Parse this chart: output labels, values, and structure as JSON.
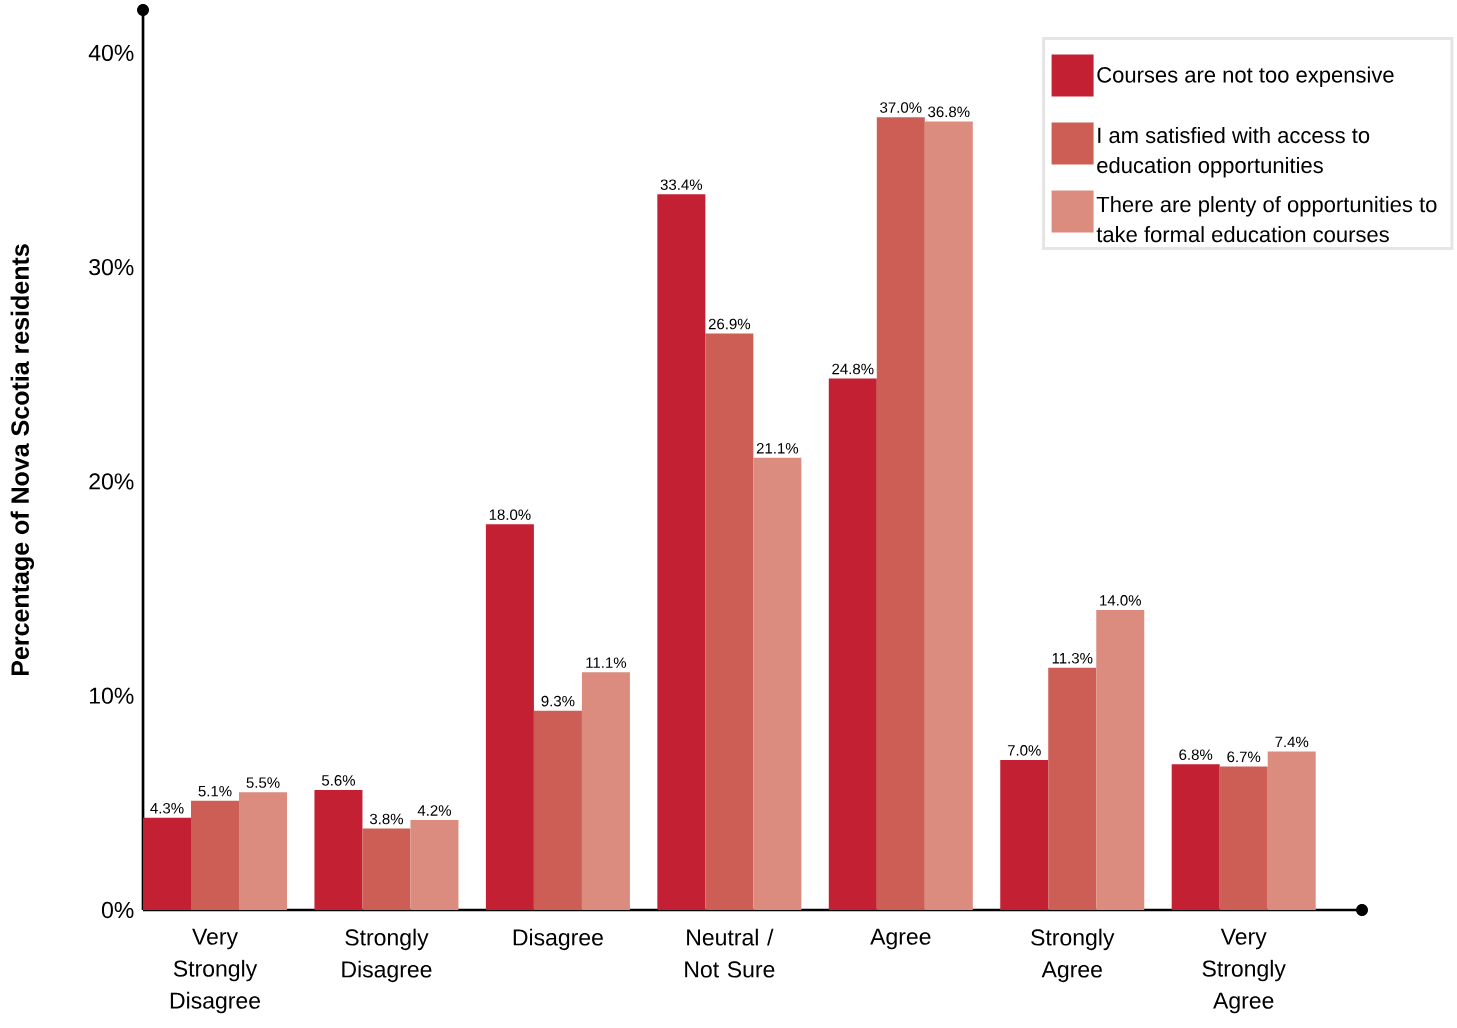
{
  "chart_data": {
    "type": "bar",
    "ylabel": "Percentage of Nova Scotia residents",
    "categories": [
      "Very Strongly Disagree",
      "Strongly Disagree",
      "Disagree",
      "Neutral / Not Sure",
      "Agree",
      "Strongly Agree",
      "Very Strongly Agree"
    ],
    "series": [
      {
        "name": "Courses are not too expensive",
        "color": "#c32033",
        "values": [
          4.3,
          5.6,
          18.0,
          33.4,
          24.8,
          7.0,
          6.8
        ],
        "value_labels": [
          "4.3%",
          "5.6%",
          "18.0%",
          "33.4%",
          "24.8%",
          "7.0%",
          "6.8%"
        ]
      },
      {
        "name": "I am satisfied with access to education opportunities",
        "color": "#cd5e55",
        "values": [
          5.1,
          3.8,
          9.3,
          26.9,
          37.0,
          11.3,
          6.7
        ],
        "value_labels": [
          "5.1%",
          "3.8%",
          "9.3%",
          "26.9%",
          "37.0%",
          "11.3%",
          "6.7%"
        ]
      },
      {
        "name": "There are plenty of opportunities to take formal education courses",
        "color": "#db8c7e",
        "values": [
          5.5,
          4.2,
          11.1,
          21.1,
          36.8,
          14.0,
          7.4
        ],
        "value_labels": [
          "5.5%",
          "4.2%",
          "11.1%",
          "21.1%",
          "36.8%",
          "14.0%",
          "7.4%"
        ]
      }
    ],
    "ylim": [
      0,
      42
    ],
    "yticks": [
      {
        "value": 0,
        "label": "0%"
      },
      {
        "value": 10,
        "label": "10%"
      },
      {
        "value": 20,
        "label": "20%"
      },
      {
        "value": 30,
        "label": "30%"
      },
      {
        "value": 40,
        "label": "40%"
      }
    ],
    "grid": false,
    "legend": "top right"
  }
}
